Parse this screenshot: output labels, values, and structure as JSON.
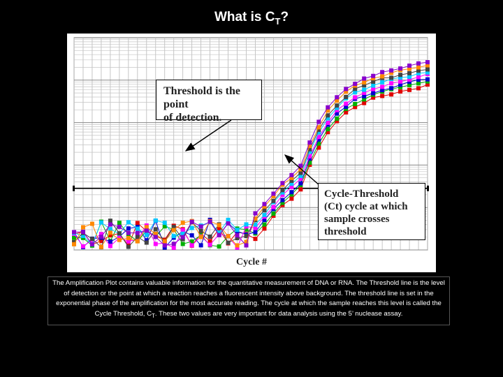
{
  "slide": {
    "title_main": "What is C",
    "title_sub": "T",
    "title_end": "?"
  },
  "chart_data": {
    "type": "line",
    "title": "",
    "xlabel": "Cycle #",
    "ylabel": "",
    "x_range": [
      1,
      40
    ],
    "y_scale": "log",
    "y_range_decades": [
      0,
      5
    ],
    "grid": true,
    "threshold_level": 1.45,
    "threshold_label": "Threshold",
    "series_colors": [
      "#e00000",
      "#00b000",
      "#0000d0",
      "#ff00ff",
      "#00c8ff",
      "#444444",
      "#ff8800",
      "#8800cc"
    ],
    "series_count": 8,
    "x": [
      1,
      2,
      3,
      4,
      5,
      6,
      7,
      8,
      9,
      10,
      11,
      12,
      13,
      14,
      15,
      16,
      17,
      18,
      19,
      20,
      21,
      22,
      23,
      24,
      25,
      26,
      27,
      28,
      29,
      30,
      31,
      32,
      33,
      34,
      35,
      36,
      37,
      38,
      39,
      40
    ],
    "mean_curve": [
      0.35,
      0.35,
      0.35,
      0.35,
      0.35,
      0.35,
      0.35,
      0.35,
      0.35,
      0.35,
      0.35,
      0.35,
      0.35,
      0.35,
      0.35,
      0.35,
      0.35,
      0.35,
      0.35,
      0.4,
      0.6,
      0.85,
      1.1,
      1.35,
      1.55,
      1.75,
      2.3,
      2.75,
      3.1,
      3.35,
      3.55,
      3.7,
      3.8,
      3.88,
      3.95,
      4.0,
      4.05,
      4.1,
      4.15,
      4.2
    ],
    "noise_amplitude": 0.35,
    "annotations": [
      {
        "text": [
          "Threshold is the point",
          "of detection."
        ]
      },
      {
        "text": [
          "Cycle-Threshold",
          "(Ct) cycle at which",
          "sample crosses",
          "threshold"
        ]
      }
    ]
  },
  "caption": {
    "text_before": "The Amplification Plot contains valuable information for the quantitative measurement of DNA or RNA. The Threshold line is the level of detection or the point at which a reaction reaches a fluorescent intensity above background. The threshold line is set in the exponential phase of the amplification for the most accurate reading. The cycle at which the sample reaches this level is called the Cycle Threshold, C",
    "text_sub": "T",
    "text_after": ". These two values are very important for data analysis using the 5’ nuclease assay."
  }
}
